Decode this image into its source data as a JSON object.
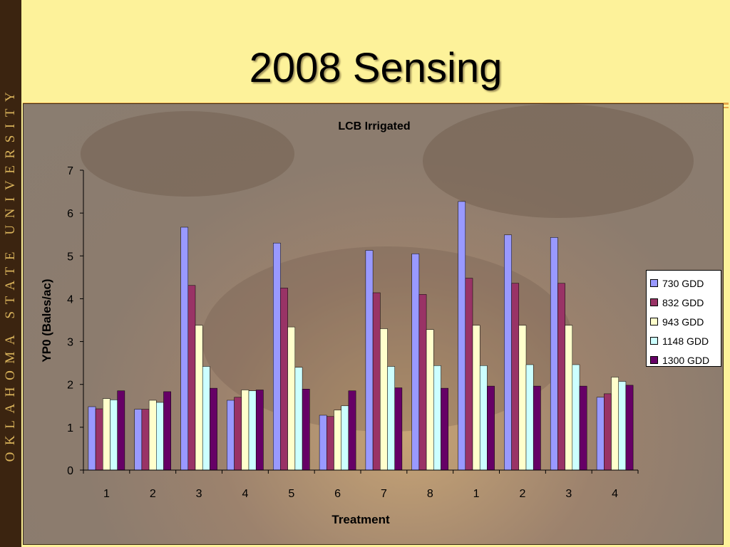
{
  "slide": {
    "title": "2008 Sensing",
    "side_text": "OKLAHOMA STATE UNIVERSITY"
  },
  "colors": {
    "730 GDD": "#9999ff",
    "832 GDD": "#993366",
    "943 GDD": "#ffffcc",
    "1148 GDD": "#ccffff",
    "1300 GDD": "#660066"
  },
  "chart_data": {
    "type": "bar",
    "title": "LCB Irrigated",
    "xlabel": "Treatment",
    "ylabel": "YP0 (Bales/ac)",
    "ylim": [
      0,
      7
    ],
    "yticks": [
      0,
      1,
      2,
      3,
      4,
      5,
      6,
      7
    ],
    "categories": [
      "1",
      "2",
      "3",
      "4",
      "5",
      "6",
      "7",
      "8",
      "1",
      "2",
      "3",
      "4"
    ],
    "legend_position": "right",
    "series": [
      {
        "name": "730 GDD",
        "values": [
          1.48,
          1.42,
          5.67,
          1.63,
          5.3,
          1.28,
          5.13,
          5.05,
          6.27,
          5.49,
          5.43,
          1.7
        ]
      },
      {
        "name": "832 GDD",
        "values": [
          1.43,
          1.42,
          4.31,
          1.7,
          4.25,
          1.25,
          4.14,
          4.1,
          4.48,
          4.36,
          4.36,
          1.78
        ]
      },
      {
        "name": "943 GDD",
        "values": [
          1.67,
          1.63,
          3.38,
          1.87,
          3.34,
          1.4,
          3.3,
          3.28,
          3.38,
          3.38,
          3.38,
          2.17
        ]
      },
      {
        "name": "1148 GDD",
        "values": [
          1.64,
          1.58,
          2.42,
          1.85,
          2.4,
          1.5,
          2.42,
          2.44,
          2.44,
          2.46,
          2.46,
          2.07
        ]
      },
      {
        "name": "1300 GDD",
        "values": [
          1.85,
          1.83,
          1.91,
          1.87,
          1.89,
          1.85,
          1.92,
          1.91,
          1.96,
          1.96,
          1.96,
          1.98
        ]
      }
    ]
  }
}
